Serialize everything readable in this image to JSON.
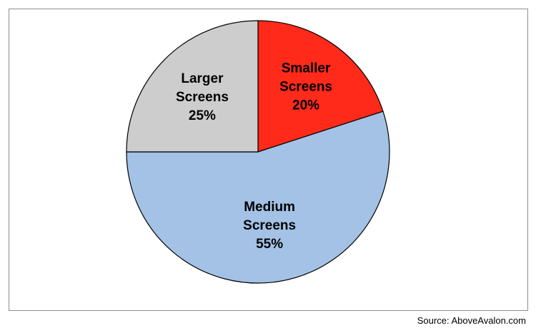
{
  "chart_data": {
    "type": "pie",
    "slices": [
      {
        "label_lines": [
          "Smaller",
          "Screens",
          "20%"
        ],
        "name": "Smaller Screens",
        "value": 20,
        "color": "#ff2a1a"
      },
      {
        "label_lines": [
          "Medium",
          "Screens",
          "55%"
        ],
        "name": "Medium Screens",
        "value": 55,
        "color": "#a4c2e6"
      },
      {
        "label_lines": [
          "Larger",
          "Screens",
          "25%"
        ],
        "name": "Larger Screens",
        "value": 25,
        "color": "#cdcdcd"
      }
    ],
    "start": "12 o'clock",
    "direction": "clockwise",
    "border_color": "#000000",
    "legend": "none"
  },
  "source": "Source: AboveAvalon.com"
}
